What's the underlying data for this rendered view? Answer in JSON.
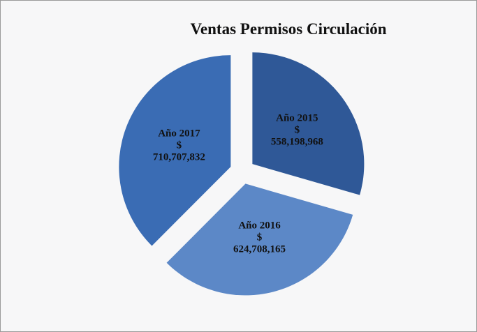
{
  "chart_data": {
    "type": "pie",
    "title": "Ventas Permisos Circulación",
    "categories": [
      "Año 2015",
      "Año 2016",
      "Año 2017"
    ],
    "values": [
      558198968,
      624708165,
      710707832
    ],
    "value_labels": [
      "$\n558,198,968",
      "$\n624,708,165",
      "$\n710,707,832"
    ],
    "colors": [
      "#2f5897",
      "#5c88c7",
      "#3a6cb4"
    ]
  }
}
